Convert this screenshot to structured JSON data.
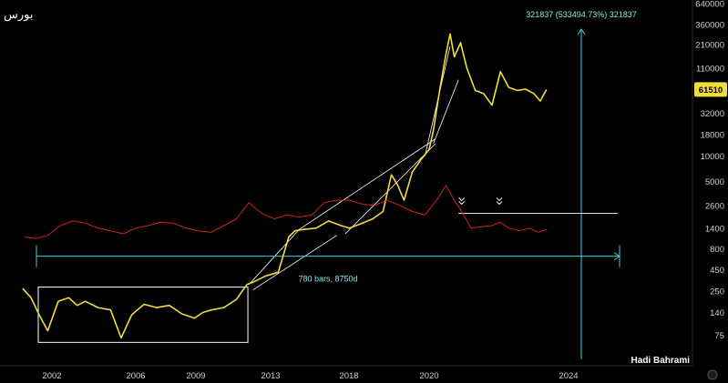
{
  "chart_data": {
    "type": "line",
    "title": "بورس",
    "watermark": "Hadi Bahrami",
    "y_scale": "log",
    "ylim": [
      50,
      640000
    ],
    "y_ticks": [
      640000,
      360000,
      210000,
      110000,
      61510,
      32000,
      18000,
      10000,
      5000,
      2600,
      1400,
      800,
      450,
      250,
      140,
      75
    ],
    "y_tick_labels": [
      "640000",
      "360000",
      "210000",
      "110000",
      "61510",
      "32000",
      "18000",
      "10000",
      "5000",
      "2600",
      "1400",
      "800",
      "450",
      "250",
      "140",
      "75"
    ],
    "x_ticks": [
      2002,
      2006,
      2009,
      2013,
      2018,
      2020,
      2024
    ],
    "x_tick_labels": [
      "2002",
      "2006",
      "2009",
      "2013",
      "2018",
      "2020",
      "2024"
    ],
    "current_price": "61510",
    "series": [
      {
        "color": "#f2dc3c",
        "x": [
          2000.6,
          2001.0,
          2001.4,
          2001.8,
          2002.3,
          2002.8,
          2003.2,
          2003.6,
          2004.2,
          2004.8,
          2005.3,
          2005.8,
          2006.0,
          2006.4,
          2007.0,
          2007.6,
          2008.2,
          2008.8,
          2009.2,
          2009.6,
          2010.2,
          2010.8,
          2011.3,
          2011.6,
          2012.2,
          2012.8,
          2013.3,
          2013.6,
          2014.0,
          2014.6,
          2015.2,
          2015.8,
          2016.2,
          2016.8,
          2017.3,
          2017.8,
          2018.2,
          2018.5,
          2018.8,
          2019.2,
          2019.6,
          2020.0,
          2020.2,
          2020.5,
          2020.8,
          2021.0,
          2021.2,
          2021.5,
          2021.8,
          2022.2,
          2022.6,
          2023.0,
          2023.4,
          2023.8,
          2024.2,
          2024.6,
          2025.0,
          2025.3,
          2025.6
        ],
        "values": [
          270,
          210,
          130,
          85,
          190,
          210,
          170,
          190,
          160,
          150,
          70,
          130,
          145,
          175,
          160,
          170,
          135,
          120,
          140,
          150,
          160,
          200,
          300,
          320,
          380,
          420,
          1100,
          1300,
          1350,
          1400,
          1700,
          1500,
          1400,
          1600,
          1800,
          2200,
          6000,
          4500,
          3000,
          6500,
          9000,
          12000,
          20000,
          60000,
          160000,
          280000,
          150000,
          220000,
          110000,
          60000,
          55000,
          40000,
          100000,
          65000,
          60000,
          62000,
          55000,
          45000,
          61510
        ]
      },
      {
        "color": "#d0231e",
        "x": [
          2000.7,
          2001.2,
          2001.8,
          2002.4,
          2003.0,
          2003.6,
          2004.2,
          2004.8,
          2005.4,
          2006.0,
          2006.6,
          2007.2,
          2007.8,
          2008.4,
          2009.0,
          2009.6,
          2010.2,
          2010.8,
          2011.4,
          2012.0,
          2012.6,
          2013.2,
          2013.8,
          2014.4,
          2015.0,
          2015.6,
          2016.2,
          2016.8,
          2017.4,
          2018.0,
          2018.6,
          2019.2,
          2019.8,
          2020.4,
          2020.8,
          2021.2,
          2021.6,
          2022.0,
          2022.5,
          2023.0,
          2023.4,
          2023.8,
          2024.3,
          2024.8,
          2025.2,
          2025.6
        ],
        "values": [
          1100,
          1050,
          1150,
          1500,
          1700,
          1600,
          1400,
          1300,
          1200,
          1400,
          1500,
          1650,
          1600,
          1400,
          1300,
          1250,
          1500,
          1800,
          2800,
          2100,
          1800,
          2000,
          1900,
          2000,
          2800,
          3000,
          3000,
          2700,
          2600,
          3000,
          2600,
          2200,
          2000,
          3100,
          4500,
          3000,
          2100,
          1400,
          1450,
          1500,
          1650,
          1400,
          1300,
          1400,
          1250,
          1350
        ]
      }
    ],
    "annotations": {
      "measure_label": "321837 (533494.73%) 321837",
      "range_label": "780 bars, 8750d"
    }
  }
}
